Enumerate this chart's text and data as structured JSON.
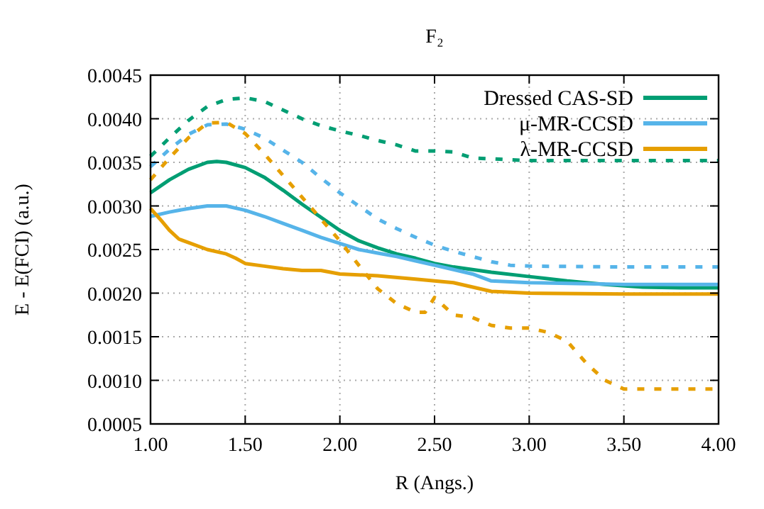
{
  "chart_data": {
    "type": "line",
    "title": "F₂",
    "xlabel": "R (Angs.)",
    "ylabel": "E - E(FCI) (a.u.)",
    "xlim": [
      1,
      4
    ],
    "xticks": [
      {
        "value": 1,
        "label": "1.00"
      },
      {
        "value": 1.5,
        "label": "1.50"
      },
      {
        "value": 2,
        "label": "2.00"
      },
      {
        "value": 2.5,
        "label": "2.50"
      },
      {
        "value": 3,
        "label": "3.00"
      },
      {
        "value": 3.5,
        "label": "3.50"
      },
      {
        "value": 4,
        "label": "4.00"
      }
    ],
    "ylim": [
      0.0005,
      0.0045
    ],
    "yticks": [
      {
        "value": 0.0005,
        "label": "0.0005"
      },
      {
        "value": 0.001,
        "label": "0.0010"
      },
      {
        "value": 0.0015,
        "label": "0.0015"
      },
      {
        "value": 0.002,
        "label": "0.0020"
      },
      {
        "value": 0.0025,
        "label": "0.0025"
      },
      {
        "value": 0.003,
        "label": "0.0030"
      },
      {
        "value": 0.0035,
        "label": "0.0035"
      },
      {
        "value": 0.004,
        "label": "0.0040"
      },
      {
        "value": 0.0045,
        "label": "0.0045"
      }
    ],
    "grid": true,
    "legend": "top right",
    "series": [
      {
        "name": "Dressed CAS-SD",
        "color": "#009e73",
        "line_style": "solid",
        "x": [
          1.0,
          1.1,
          1.2,
          1.3,
          1.35,
          1.4,
          1.5,
          1.6,
          1.7,
          1.8,
          1.9,
          2.0,
          2.1,
          2.2,
          2.3,
          2.4,
          2.5,
          2.6,
          2.7,
          2.8,
          3.0,
          3.2,
          3.4,
          3.6,
          3.8,
          4.0
        ],
        "values": [
          0.00315,
          0.0033,
          0.00342,
          0.0035,
          0.00351,
          0.0035,
          0.00344,
          0.00333,
          0.00318,
          0.00302,
          0.00287,
          0.00272,
          0.0026,
          0.00252,
          0.00245,
          0.0024,
          0.00234,
          0.0023,
          0.00227,
          0.00224,
          0.00219,
          0.00214,
          0.0021,
          0.00207,
          0.00206,
          0.00206
        ]
      },
      {
        "name": "μ-MR-CCSD",
        "color": "#56b4e9",
        "line_style": "solid",
        "x": [
          1.0,
          1.1,
          1.2,
          1.3,
          1.4,
          1.5,
          1.6,
          1.7,
          1.8,
          1.9,
          2.0,
          2.1,
          2.2,
          2.3,
          2.4,
          2.5,
          2.6,
          2.7,
          2.8,
          3.0,
          3.5,
          4.0
        ],
        "values": [
          0.00288,
          0.00293,
          0.00297,
          0.003,
          0.003,
          0.00295,
          0.00288,
          0.0028,
          0.00272,
          0.00264,
          0.00257,
          0.0025,
          0.00246,
          0.00242,
          0.00237,
          0.00232,
          0.00227,
          0.00222,
          0.00214,
          0.00212,
          0.0021,
          0.0021
        ]
      },
      {
        "name": "λ-MR-CCSD",
        "color": "#e69f00",
        "line_style": "solid",
        "x": [
          1.0,
          1.05,
          1.1,
          1.15,
          1.2,
          1.3,
          1.4,
          1.45,
          1.5,
          1.6,
          1.7,
          1.8,
          1.9,
          2.0,
          2.2,
          2.4,
          2.6,
          2.8,
          3.0,
          3.5,
          4.0
        ],
        "values": [
          0.00297,
          0.00285,
          0.00272,
          0.00262,
          0.00258,
          0.0025,
          0.00245,
          0.0024,
          0.00234,
          0.00231,
          0.00228,
          0.00226,
          0.00226,
          0.00222,
          0.0022,
          0.00216,
          0.00212,
          0.00202,
          0.002,
          0.00199,
          0.00199
        ]
      },
      {
        "color": "#009e73",
        "line_style": "dashed",
        "x": [
          1.0,
          1.1,
          1.2,
          1.3,
          1.4,
          1.5,
          1.6,
          1.7,
          1.8,
          1.9,
          2.0,
          2.1,
          2.2,
          2.3,
          2.4,
          2.5,
          2.6,
          2.7,
          3.0,
          3.5,
          4.0
        ],
        "values": [
          0.00357,
          0.00378,
          0.00398,
          0.00414,
          0.00422,
          0.00424,
          0.0042,
          0.0041,
          0.004,
          0.00392,
          0.00386,
          0.00381,
          0.00375,
          0.0037,
          0.00363,
          0.00363,
          0.00362,
          0.00355,
          0.00352,
          0.00352,
          0.00352
        ]
      },
      {
        "color": "#56b4e9",
        "line_style": "dashed",
        "x": [
          1.0,
          1.1,
          1.2,
          1.3,
          1.4,
          1.5,
          1.6,
          1.7,
          1.8,
          1.9,
          2.0,
          2.1,
          2.2,
          2.3,
          2.4,
          2.5,
          2.6,
          2.7,
          2.8,
          2.9,
          3.0,
          3.5,
          4.0
        ],
        "values": [
          0.00345,
          0.00365,
          0.00382,
          0.00393,
          0.00394,
          0.00388,
          0.00378,
          0.00364,
          0.0035,
          0.00332,
          0.00315,
          0.003,
          0.00285,
          0.00274,
          0.00264,
          0.00255,
          0.00248,
          0.00242,
          0.00236,
          0.00232,
          0.00231,
          0.0023,
          0.0023
        ]
      },
      {
        "color": "#e69f00",
        "line_style": "dashed",
        "x": [
          1.0,
          1.1,
          1.2,
          1.3,
          1.4,
          1.5,
          1.6,
          1.7,
          1.8,
          1.9,
          2.0,
          2.1,
          2.2,
          2.3,
          2.4,
          2.45,
          2.5,
          2.6,
          2.7,
          2.8,
          2.9,
          3.0,
          3.1,
          3.2,
          3.3,
          3.4,
          3.5,
          3.7,
          4.0
        ],
        "values": [
          0.0033,
          0.00355,
          0.00378,
          0.00395,
          0.00396,
          0.00383,
          0.0036,
          0.00335,
          0.0031,
          0.00285,
          0.0026,
          0.00232,
          0.00205,
          0.00188,
          0.00178,
          0.00178,
          0.00195,
          0.00175,
          0.00172,
          0.00163,
          0.0016,
          0.0016,
          0.00155,
          0.00145,
          0.0012,
          0.001,
          0.0009,
          0.0009,
          0.0009
        ]
      }
    ]
  }
}
